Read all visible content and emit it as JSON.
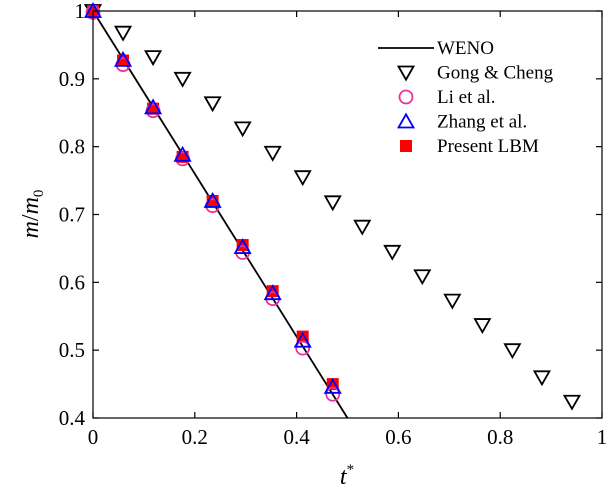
{
  "chart_data": {
    "type": "scatter",
    "title": "",
    "xlabel": {
      "base": "t",
      "sup": "*"
    },
    "ylabel": {
      "base": "m",
      "mid": "/",
      "base2": "m",
      "sub": "0"
    },
    "xlim": [
      0,
      1
    ],
    "ylim": [
      0.4,
      1
    ],
    "xticks": [
      "0",
      "0.2",
      "0.4",
      "0.6",
      "0.8",
      "1"
    ],
    "yticks": [
      "0.4",
      "0.5",
      "0.6",
      "0.7",
      "0.8",
      "0.9",
      "1"
    ],
    "grid": false,
    "legend_position": "top-right",
    "series": [
      {
        "name": "WENO",
        "style": "line",
        "color": "#000000",
        "x": [
          0,
          0.5
        ],
        "y": [
          1.0,
          0.4
        ]
      },
      {
        "name": "Gong & Cheng",
        "style": "triangle-down",
        "color": "#000000",
        "x": [
          0,
          0.059,
          0.118,
          0.176,
          0.235,
          0.294,
          0.353,
          0.412,
          0.471,
          0.529,
          0.588,
          0.647,
          0.706,
          0.765,
          0.824,
          0.882,
          0.941
        ],
        "y": [
          1.0,
          0.968,
          0.932,
          0.9,
          0.864,
          0.827,
          0.791,
          0.755,
          0.718,
          0.682,
          0.645,
          0.609,
          0.573,
          0.537,
          0.5,
          0.46,
          0.424
        ]
      },
      {
        "name": "Li et al.",
        "style": "circle",
        "color": "#e8349a",
        "x": [
          0,
          0.059,
          0.118,
          0.176,
          0.235,
          0.294,
          0.353,
          0.412,
          0.471
        ],
        "y": [
          0.998,
          0.921,
          0.853,
          0.782,
          0.713,
          0.644,
          0.576,
          0.503,
          0.435
        ]
      },
      {
        "name": "Zhang et al.",
        "style": "triangle-up",
        "color": "#0000ff",
        "x": [
          0,
          0.059,
          0.118,
          0.176,
          0.235,
          0.294,
          0.353,
          0.412,
          0.471
        ],
        "y": [
          1.0,
          0.928,
          0.858,
          0.788,
          0.72,
          0.652,
          0.584,
          0.514,
          0.446
        ]
      },
      {
        "name": "Present LBM",
        "style": "square",
        "color": "#ff0000",
        "x": [
          0,
          0.059,
          0.118,
          0.176,
          0.235,
          0.294,
          0.353,
          0.412,
          0.471
        ],
        "y": [
          1.0,
          0.927,
          0.856,
          0.785,
          0.72,
          0.655,
          0.587,
          0.52,
          0.45
        ]
      }
    ]
  }
}
